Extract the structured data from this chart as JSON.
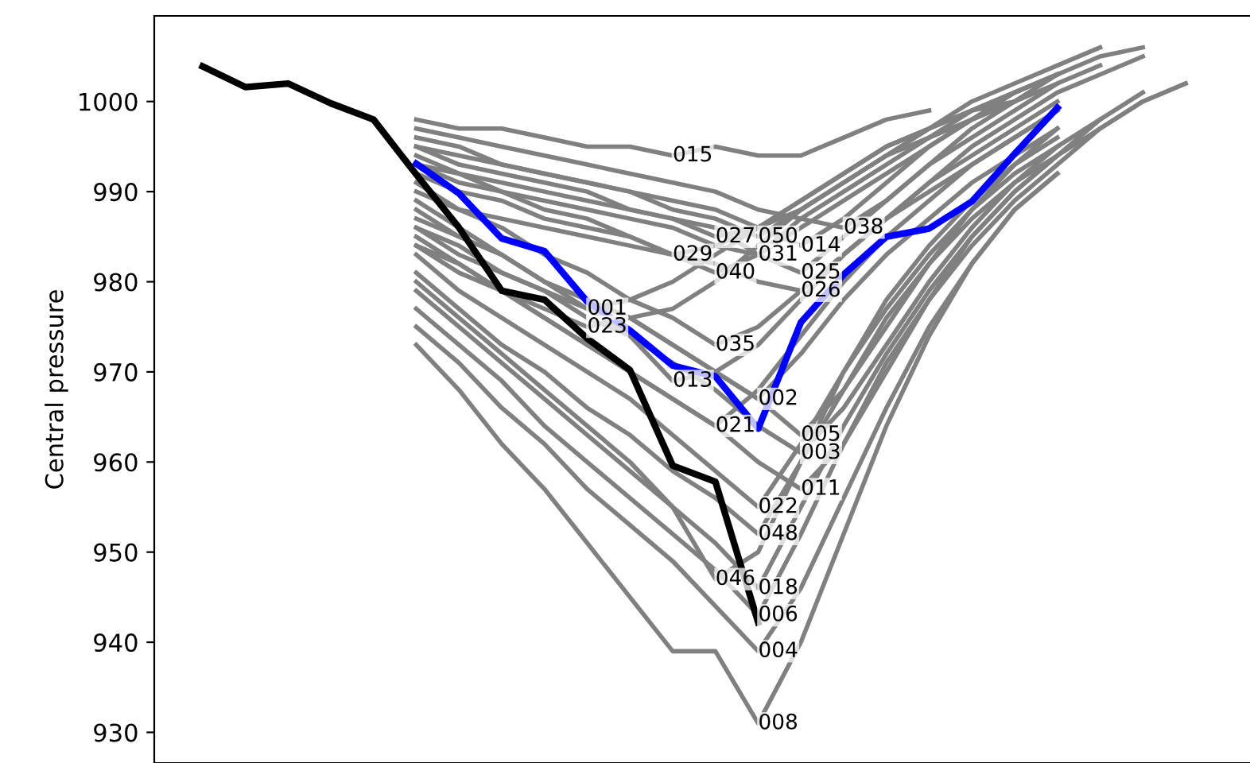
{
  "chart_data": {
    "type": "line",
    "ylabel": "Central pressure",
    "categories": [
      null,
      null,
      null,
      null,
      null,
      null,
      null,
      null,
      null,
      null,
      null,
      null,
      null,
      null,
      null,
      null,
      null,
      null,
      null,
      null,
      null,
      null,
      null,
      null
    ],
    "ylim": [
      926.6,
      1009.5
    ],
    "yticks": [
      930,
      940,
      950,
      960,
      970,
      980,
      990,
      1000
    ],
    "tick_labels": "y",
    "grid": false,
    "legend": false,
    "marker": "none",
    "line_style": "solid",
    "series": [
      {
        "name": "015",
        "color": "#808080",
        "values": [
          null,
          null,
          null,
          null,
          null,
          998,
          997,
          997,
          996,
          995,
          995,
          994,
          995,
          994,
          994,
          996,
          998,
          999,
          null,
          null,
          null,
          null,
          null,
          null
        ]
      },
      {
        "name": "029",
        "color": "#808080",
        "values": [
          null,
          null,
          null,
          null,
          null,
          990,
          988,
          987,
          986,
          985,
          984,
          983,
          984,
          986,
          989,
          992,
          995,
          997,
          999,
          1001,
          null,
          null,
          null,
          null
        ]
      },
      {
        "name": "001",
        "color": "#808080",
        "values": [
          null,
          null,
          null,
          null,
          null,
          986,
          983,
          981,
          979,
          977,
          978,
          980,
          983,
          986,
          989,
          992,
          995,
          997,
          999,
          1000,
          null,
          null,
          null,
          null
        ]
      },
      {
        "name": "023",
        "color": "#808080",
        "values": [
          null,
          null,
          null,
          null,
          null,
          984,
          981,
          979,
          977,
          975,
          976,
          977,
          980,
          984,
          988,
          991,
          994,
          996,
          998,
          1000,
          null,
          null,
          null,
          null
        ]
      },
      {
        "name": "013",
        "color": "#808080",
        "values": [
          null,
          null,
          null,
          null,
          null,
          989,
          986,
          983,
          980,
          977,
          974,
          969,
          970,
          973,
          978,
          983,
          987,
          990,
          993,
          996,
          999,
          null,
          null,
          null
        ]
      },
      {
        "name": "027",
        "color": "#808080",
        "values": [
          null,
          null,
          null,
          null,
          null,
          995,
          993,
          992,
          991,
          990,
          988,
          987,
          985,
          986,
          988,
          991,
          994,
          997,
          999,
          1001,
          1003,
          1005,
          1006,
          null
        ]
      },
      {
        "name": "040",
        "color": "#808080",
        "values": [
          null,
          null,
          null,
          null,
          null,
          993,
          991,
          990,
          988,
          987,
          985,
          983,
          981,
          983,
          986,
          989,
          992,
          995,
          998,
          1000,
          1002,
          null,
          null,
          null
        ]
      },
      {
        "name": "035",
        "color": "#808080",
        "values": [
          null,
          null,
          null,
          null,
          null,
          991,
          988,
          986,
          983,
          981,
          978,
          976,
          973,
          975,
          979,
          983,
          987,
          991,
          994,
          997,
          1000,
          null,
          null,
          null
        ]
      },
      {
        "name": "021",
        "color": "#808080",
        "values": [
          null,
          null,
          null,
          null,
          null,
          985,
          982,
          979,
          976,
          973,
          970,
          967,
          964,
          968,
          974,
          980,
          985,
          989,
          993,
          996,
          999,
          null,
          null,
          null
        ]
      },
      {
        "name": "046",
        "color": "#808080",
        "values": [
          null,
          null,
          null,
          null,
          null,
          980,
          976,
          972,
          968,
          964,
          960,
          955,
          947,
          950,
          960,
          970,
          978,
          984,
          989,
          993,
          996,
          null,
          null,
          null
        ]
      },
      {
        "name": "050",
        "color": "#808080",
        "values": [
          null,
          null,
          null,
          null,
          null,
          996,
          995,
          993,
          992,
          991,
          990,
          988,
          987,
          985,
          988,
          991,
          994,
          997,
          1000,
          1002,
          1004,
          1006,
          null,
          null
        ]
      },
      {
        "name": "031",
        "color": "#808080",
        "values": [
          null,
          null,
          null,
          null,
          null,
          994,
          992,
          991,
          990,
          989,
          988,
          987,
          986,
          983,
          987,
          990,
          993,
          996,
          999,
          1001,
          1003,
          null,
          null,
          null
        ]
      },
      {
        "name": "002",
        "color": "#808080",
        "values": [
          null,
          null,
          null,
          null,
          null,
          988,
          985,
          983,
          980,
          978,
          976,
          973,
          970,
          967,
          972,
          978,
          983,
          987,
          991,
          994,
          997,
          null,
          null,
          null
        ]
      },
      {
        "name": "022",
        "color": "#808080",
        "values": [
          null,
          null,
          null,
          null,
          null,
          983,
          979,
          976,
          973,
          970,
          967,
          963,
          959,
          955,
          962,
          970,
          977,
          983,
          988,
          992,
          995,
          null,
          null,
          null
        ]
      },
      {
        "name": "048",
        "color": "#808080",
        "values": [
          null,
          null,
          null,
          null,
          null,
          981,
          977,
          973,
          970,
          966,
          963,
          959,
          956,
          952,
          960,
          968,
          976,
          982,
          987,
          991,
          994,
          998,
          1001,
          null
        ]
      },
      {
        "name": "018",
        "color": "#808080",
        "values": [
          null,
          null,
          null,
          null,
          null,
          979,
          975,
          971,
          967,
          963,
          959,
          955,
          951,
          946,
          955,
          964,
          972,
          979,
          985,
          990,
          994,
          null,
          null,
          null
        ]
      },
      {
        "name": "006",
        "color": "#808080",
        "values": [
          null,
          null,
          null,
          null,
          null,
          977,
          973,
          969,
          964,
          960,
          956,
          952,
          948,
          943,
          952,
          962,
          971,
          978,
          984,
          989,
          993,
          997,
          1000,
          1002
        ]
      },
      {
        "name": "004",
        "color": "#808080",
        "values": [
          null,
          null,
          null,
          null,
          null,
          975,
          971,
          966,
          962,
          957,
          953,
          949,
          944,
          939,
          946,
          956,
          966,
          975,
          982,
          988,
          992,
          null,
          null,
          null
        ]
      },
      {
        "name": "008",
        "color": "#808080",
        "values": [
          null,
          null,
          null,
          null,
          null,
          973,
          968,
          962,
          957,
          951,
          945,
          939,
          939,
          931,
          940,
          952,
          964,
          974,
          982,
          988,
          992,
          null,
          null,
          null
        ]
      },
      {
        "name": "014",
        "color": "#808080",
        "values": [
          null,
          null,
          null,
          null,
          null,
          995,
          994,
          993,
          992,
          991,
          990,
          989,
          988,
          986,
          984,
          987,
          991,
          995,
          998,
          1001,
          1003,
          null,
          null,
          null
        ]
      },
      {
        "name": "025",
        "color": "#808080",
        "values": [
          null,
          null,
          null,
          null,
          null,
          993,
          992,
          990,
          989,
          988,
          987,
          986,
          984,
          983,
          981,
          985,
          989,
          993,
          997,
          1000,
          1003,
          null,
          null,
          null
        ]
      },
      {
        "name": "026",
        "color": "#808080",
        "values": [
          null,
          null,
          null,
          null,
          null,
          992,
          990,
          989,
          987,
          986,
          985,
          983,
          982,
          980,
          979,
          983,
          987,
          991,
          995,
          998,
          1001,
          1003,
          1005,
          null
        ]
      },
      {
        "name": "005",
        "color": "#808080",
        "values": [
          null,
          null,
          null,
          null,
          null,
          987,
          985,
          983,
          980,
          978,
          976,
          973,
          970,
          967,
          963,
          968,
          975,
          982,
          988,
          993,
          997,
          null,
          null,
          null
        ]
      },
      {
        "name": "003",
        "color": "#808080",
        "values": [
          null,
          null,
          null,
          null,
          null,
          986,
          984,
          981,
          979,
          976,
          974,
          971,
          968,
          964,
          961,
          966,
          973,
          980,
          986,
          991,
          995,
          998,
          null,
          null
        ]
      },
      {
        "name": "011",
        "color": "#808080",
        "values": [
          null,
          null,
          null,
          null,
          null,
          984,
          982,
          979,
          976,
          973,
          970,
          967,
          964,
          960,
          957,
          962,
          970,
          978,
          985,
          990,
          994,
          997,
          1000,
          1002
        ]
      },
      {
        "name": "038",
        "color": "#808080",
        "values": [
          null,
          null,
          null,
          null,
          null,
          997,
          996,
          995,
          994,
          993,
          992,
          991,
          990,
          988,
          987,
          986,
          989,
          993,
          996,
          999,
          1002,
          1004,
          null,
          null
        ]
      },
      {
        "color": "#0000ff",
        "values": [
          null,
          null,
          null,
          null,
          null,
          993.1,
          989.8,
          984.8,
          983.4,
          977.8,
          974.6,
          970.7,
          969.5,
          963.7,
          975.5,
          980.8,
          985,
          985.9,
          988.9,
          994.2,
          999.3,
          null,
          null,
          null
        ]
      },
      {
        "color": "#000000",
        "values": [
          1003.9,
          1001.6,
          1002,
          999.8,
          998,
          991.9,
          986,
          979,
          978,
          973.7,
          970.2,
          959.6,
          957.8,
          942.2,
          null,
          null,
          null,
          null,
          null,
          null,
          null,
          null,
          null,
          null
        ]
      }
    ]
  }
}
